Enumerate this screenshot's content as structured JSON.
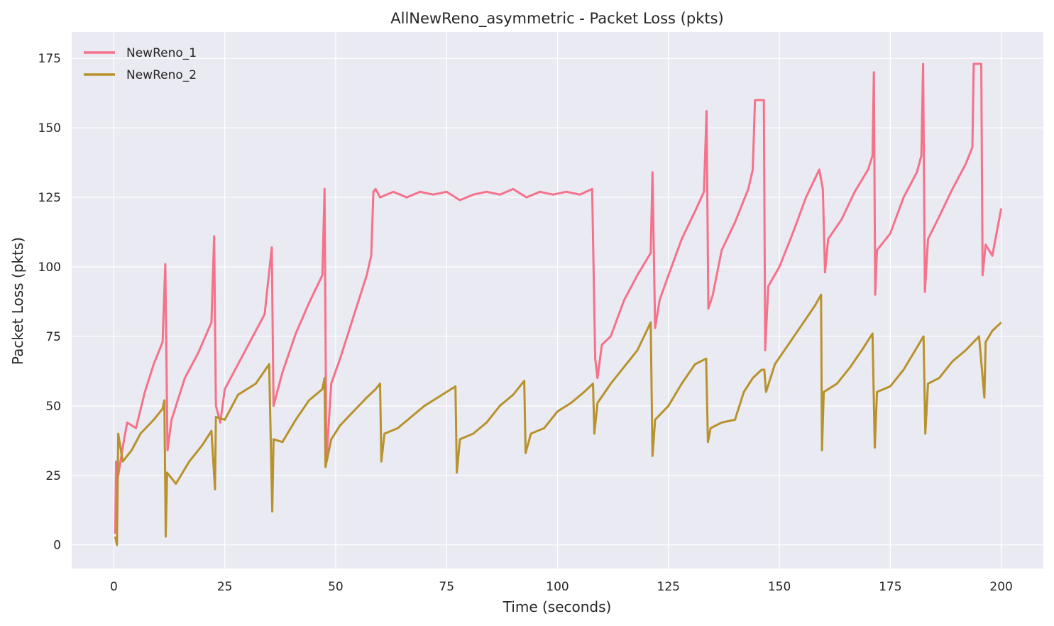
{
  "chart_data": {
    "type": "line",
    "title": "AllNewReno_asymmetric - Packet Loss (pkts)",
    "xlabel": "Time (seconds)",
    "ylabel": "Packet Loss (pkts)",
    "xlim": [
      -9.5,
      209.5
    ],
    "ylim": [
      -8.5,
      184.5
    ],
    "xticks": [
      0,
      25,
      50,
      75,
      100,
      125,
      150,
      175,
      200
    ],
    "yticks": [
      0,
      25,
      50,
      75,
      100,
      125,
      150,
      175
    ],
    "grid": true,
    "legend_position": "top-left",
    "background": "#eaeaf2",
    "series": [
      {
        "name": "NewReno_1",
        "color": "#f4728a",
        "points": [
          [
            0.3,
            4
          ],
          [
            0.5,
            30
          ],
          [
            1,
            25
          ],
          [
            2,
            35
          ],
          [
            3,
            44
          ],
          [
            5,
            42
          ],
          [
            7,
            55
          ],
          [
            9,
            65
          ],
          [
            11,
            73
          ],
          [
            11.6,
            101
          ],
          [
            12.1,
            34
          ],
          [
            13,
            45
          ],
          [
            16,
            60
          ],
          [
            19,
            69
          ],
          [
            22,
            80
          ],
          [
            22.6,
            111
          ],
          [
            23,
            50
          ],
          [
            24,
            44
          ],
          [
            25,
            56
          ],
          [
            28,
            65
          ],
          [
            31,
            74
          ],
          [
            34,
            83
          ],
          [
            35.6,
            107
          ],
          [
            36,
            50
          ],
          [
            38,
            62
          ],
          [
            41,
            76
          ],
          [
            44,
            87
          ],
          [
            47,
            97
          ],
          [
            47.5,
            128
          ],
          [
            47.9,
            30
          ],
          [
            49,
            58
          ],
          [
            51,
            67
          ],
          [
            54,
            82
          ],
          [
            57,
            97
          ],
          [
            58,
            104
          ],
          [
            58.5,
            127
          ],
          [
            59,
            128
          ],
          [
            60,
            125
          ],
          [
            63,
            127
          ],
          [
            66,
            125
          ],
          [
            69,
            127
          ],
          [
            72,
            126
          ],
          [
            75,
            127
          ],
          [
            78,
            124
          ],
          [
            81,
            126
          ],
          [
            84,
            127
          ],
          [
            87,
            126
          ],
          [
            90,
            128
          ],
          [
            93,
            125
          ],
          [
            96,
            127
          ],
          [
            99,
            126
          ],
          [
            102,
            127
          ],
          [
            105,
            126
          ],
          [
            107.8,
            128
          ],
          [
            108.5,
            67
          ],
          [
            109,
            60
          ],
          [
            110,
            72
          ],
          [
            112,
            75
          ],
          [
            115,
            88
          ],
          [
            118,
            97
          ],
          [
            121,
            105
          ],
          [
            121.4,
            134
          ],
          [
            122,
            78
          ],
          [
            123,
            88
          ],
          [
            125,
            97
          ],
          [
            128,
            110
          ],
          [
            131,
            120
          ],
          [
            133,
            127
          ],
          [
            133.6,
            156
          ],
          [
            134,
            85
          ],
          [
            135,
            90
          ],
          [
            137,
            106
          ],
          [
            140,
            116
          ],
          [
            143,
            128
          ],
          [
            144,
            135
          ],
          [
            144.5,
            160
          ],
          [
            146.5,
            160
          ],
          [
            146.8,
            70
          ],
          [
            147.5,
            93
          ],
          [
            150,
            100
          ],
          [
            153,
            112
          ],
          [
            156,
            125
          ],
          [
            159,
            135
          ],
          [
            159.8,
            128
          ],
          [
            160.3,
            98
          ],
          [
            161,
            110
          ],
          [
            164,
            117
          ],
          [
            167,
            127
          ],
          [
            170,
            135
          ],
          [
            171,
            140
          ],
          [
            171.3,
            170
          ],
          [
            171.6,
            90
          ],
          [
            172,
            106
          ],
          [
            175,
            112
          ],
          [
            178,
            125
          ],
          [
            181,
            134
          ],
          [
            182,
            140
          ],
          [
            182.4,
            173
          ],
          [
            182.8,
            91
          ],
          [
            183.5,
            110
          ],
          [
            186,
            118
          ],
          [
            189,
            128
          ],
          [
            192,
            137
          ],
          [
            193.5,
            143
          ],
          [
            193.8,
            173
          ],
          [
            195.5,
            173
          ],
          [
            195.8,
            97
          ],
          [
            196.5,
            108
          ],
          [
            198,
            104
          ],
          [
            200,
            121
          ]
        ]
      },
      {
        "name": "NewReno_2",
        "color": "#b8922c",
        "points": [
          [
            0.3,
            3
          ],
          [
            0.7,
            0
          ],
          [
            1,
            40
          ],
          [
            2,
            30
          ],
          [
            4,
            34
          ],
          [
            6,
            40
          ],
          [
            9,
            45
          ],
          [
            11,
            49
          ],
          [
            11.4,
            52
          ],
          [
            11.7,
            3
          ],
          [
            12,
            26
          ],
          [
            14,
            22
          ],
          [
            17,
            30
          ],
          [
            20,
            36
          ],
          [
            22,
            41
          ],
          [
            22.8,
            20
          ],
          [
            23,
            46
          ],
          [
            25,
            45
          ],
          [
            28,
            54
          ],
          [
            32,
            58
          ],
          [
            35,
            65
          ],
          [
            35.7,
            12
          ],
          [
            36,
            38
          ],
          [
            38,
            37
          ],
          [
            41,
            45
          ],
          [
            44,
            52
          ],
          [
            47,
            56
          ],
          [
            47.5,
            60
          ],
          [
            47.7,
            28
          ],
          [
            49,
            38
          ],
          [
            51,
            43
          ],
          [
            54,
            48
          ],
          [
            57,
            53
          ],
          [
            59,
            56
          ],
          [
            60,
            58
          ],
          [
            60.3,
            30
          ],
          [
            61,
            40
          ],
          [
            64,
            42
          ],
          [
            67,
            46
          ],
          [
            70,
            50
          ],
          [
            73,
            53
          ],
          [
            76,
            56
          ],
          [
            77,
            57
          ],
          [
            77.3,
            26
          ],
          [
            78,
            38
          ],
          [
            81,
            40
          ],
          [
            84,
            44
          ],
          [
            87,
            50
          ],
          [
            90,
            54
          ],
          [
            92.5,
            59
          ],
          [
            92.8,
            33
          ],
          [
            94,
            40
          ],
          [
            97,
            42
          ],
          [
            100,
            48
          ],
          [
            103,
            51
          ],
          [
            106,
            55
          ],
          [
            108,
            58
          ],
          [
            108.3,
            40
          ],
          [
            109,
            51
          ],
          [
            112,
            58
          ],
          [
            115,
            64
          ],
          [
            118,
            70
          ],
          [
            121,
            80
          ],
          [
            121.4,
            32
          ],
          [
            122,
            45
          ],
          [
            125,
            50
          ],
          [
            128,
            58
          ],
          [
            131,
            65
          ],
          [
            133.5,
            67
          ],
          [
            133.9,
            37
          ],
          [
            134.5,
            42
          ],
          [
            137,
            44
          ],
          [
            140,
            45
          ],
          [
            142,
            55
          ],
          [
            144,
            60
          ],
          [
            146,
            63
          ],
          [
            146.6,
            63
          ],
          [
            147,
            55
          ],
          [
            149,
            65
          ],
          [
            152,
            72
          ],
          [
            155,
            79
          ],
          [
            158,
            86
          ],
          [
            159.4,
            90
          ],
          [
            159.6,
            34
          ],
          [
            160,
            55
          ],
          [
            163,
            58
          ],
          [
            166,
            64
          ],
          [
            169,
            71
          ],
          [
            171,
            76
          ],
          [
            171.5,
            35
          ],
          [
            172,
            55
          ],
          [
            175,
            57
          ],
          [
            178,
            63
          ],
          [
            181,
            71
          ],
          [
            182.5,
            75
          ],
          [
            182.9,
            40
          ],
          [
            183.5,
            58
          ],
          [
            186,
            60
          ],
          [
            189,
            66
          ],
          [
            192,
            70
          ],
          [
            195,
            75
          ],
          [
            196.2,
            53
          ],
          [
            196.5,
            73
          ],
          [
            198,
            77
          ],
          [
            200,
            80
          ]
        ]
      }
    ]
  }
}
